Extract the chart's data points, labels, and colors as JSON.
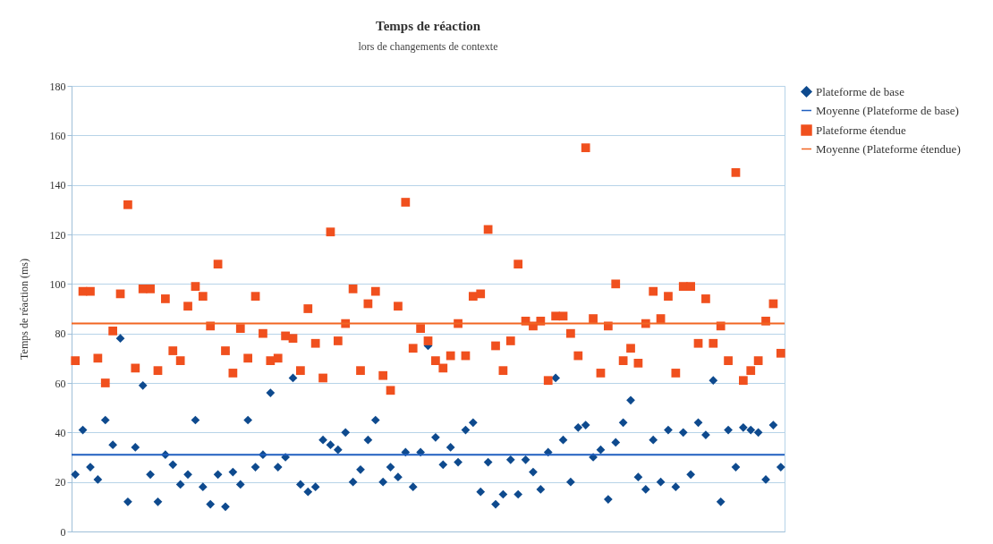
{
  "chart_data": {
    "type": "scatter",
    "title": "Temps de réaction",
    "subtitle": "lors de changements de contexte",
    "ylabel": "Temps de réaction (ms)",
    "categories": [
      null,
      null,
      null,
      null,
      null,
      null,
      null,
      null,
      null,
      null,
      null,
      null,
      null,
      null,
      null,
      null,
      null,
      null,
      null,
      null,
      null,
      null,
      null,
      null,
      null,
      null,
      null,
      null,
      null,
      null,
      null,
      null,
      null,
      null,
      null,
      null,
      null,
      null,
      null,
      null,
      null,
      null,
      null,
      null,
      null,
      null,
      null,
      null,
      null,
      null,
      null,
      null,
      null,
      null,
      null,
      null,
      null,
      null,
      null,
      null,
      null,
      null,
      null,
      null,
      null,
      null,
      null,
      null,
      null,
      null,
      null,
      null,
      null,
      null,
      null,
      null,
      null,
      null,
      null,
      null,
      null,
      null,
      null,
      null,
      null,
      null,
      null,
      null,
      null,
      null,
      null,
      null,
      null,
      null,
      null
    ],
    "series": [
      {
        "name": "Plateforme de base",
        "color": "#0e4a8e",
        "marker": "diamond",
        "values": [
          23,
          41,
          26,
          21,
          45,
          35,
          78,
          12,
          34,
          59,
          23,
          12,
          31,
          27,
          19,
          23,
          45,
          18,
          11,
          23,
          10,
          24,
          19,
          45,
          26,
          31,
          56,
          26,
          30,
          62,
          19,
          16,
          18,
          37,
          35,
          33,
          40,
          20,
          25,
          37,
          45,
          20,
          26,
          22,
          32,
          18,
          32,
          75,
          38,
          27,
          34,
          28,
          41,
          44,
          16,
          28,
          11,
          15,
          29,
          15,
          29,
          24,
          17,
          32,
          62,
          37,
          20,
          42,
          43,
          30,
          33,
          13,
          36,
          44,
          53,
          22,
          17,
          37,
          20,
          41,
          18,
          40,
          23,
          44,
          39,
          61,
          12,
          41,
          26,
          42,
          41,
          40,
          21,
          43,
          26
        ]
      },
      {
        "name": "Plateforme étendue",
        "color": "#f0501e",
        "marker": "square",
        "values": [
          69,
          97,
          97,
          70,
          60,
          81,
          96,
          132,
          66,
          98,
          98,
          65,
          94,
          73,
          69,
          91,
          99,
          95,
          83,
          108,
          73,
          64,
          82,
          70,
          95,
          80,
          69,
          70,
          79,
          78,
          65,
          90,
          76,
          62,
          121,
          77,
          84,
          98,
          65,
          92,
          97,
          63,
          57,
          91,
          133,
          74,
          82,
          77,
          69,
          66,
          71,
          84,
          71,
          95,
          96,
          122,
          75,
          65,
          77,
          108,
          85,
          83,
          85,
          61,
          87,
          87,
          80,
          71,
          155,
          86,
          64,
          83,
          100,
          69,
          74,
          68,
          84,
          97,
          86,
          95,
          64,
          99,
          99,
          76,
          94,
          76,
          83,
          69,
          145,
          61,
          65,
          69,
          85,
          92,
          72
        ]
      }
    ],
    "ref_lines": [
      {
        "axis": "y",
        "value": 31,
        "label": "Moyenne (Plateforme de base)",
        "color": "#1f5fc0",
        "line_style": "solid"
      },
      {
        "axis": "y",
        "value": 84,
        "label": "Moyenne (Plateforme étendue)",
        "color": "#f26522",
        "line_style": "solid"
      }
    ],
    "ylim": [
      0,
      180
    ],
    "yticks": [
      0,
      20,
      40,
      60,
      80,
      100,
      120,
      140,
      160,
      180
    ],
    "grid": "y",
    "legend": "right",
    "tick_labels": "y"
  }
}
